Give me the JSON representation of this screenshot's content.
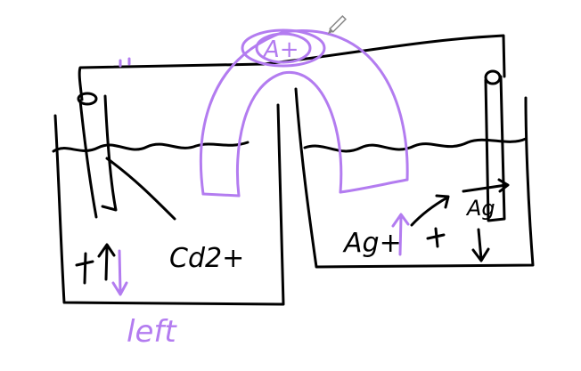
{
  "colors": {
    "background": "#ffffff",
    "black_ink": "#000000",
    "purple_ink": "#b37cf0",
    "pen_cursor": "#888888"
  },
  "labels": {
    "salt_bridge": "A+",
    "left_solution": "Cd2+",
    "right_ion": "Ag+",
    "right_electrode": "Ag",
    "left_plus": "+",
    "right_plus": "+",
    "left_direction": "left"
  },
  "icons": {
    "pen_cursor": "pen-cursor-icon"
  }
}
